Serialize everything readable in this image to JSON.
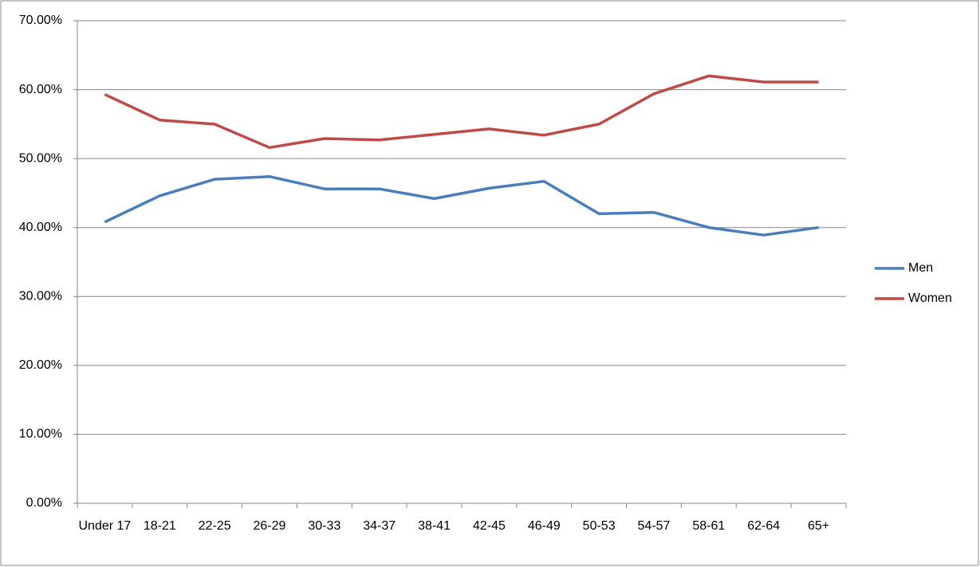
{
  "chart_data": {
    "type": "line",
    "categories": [
      "Under 17",
      "18-21",
      "22-25",
      "26-29",
      "30-33",
      "34-37",
      "38-41",
      "42-45",
      "46-49",
      "50-53",
      "54-57",
      "58-61",
      "62-64",
      "65+"
    ],
    "series": [
      {
        "name": "Men",
        "color": "#4a7ebb",
        "values": [
          40.8,
          44.6,
          47.0,
          47.4,
          45.6,
          45.6,
          44.2,
          45.7,
          46.7,
          42.0,
          42.2,
          40.0,
          38.9,
          40.0
        ]
      },
      {
        "name": "Women",
        "color": "#be4b48",
        "values": [
          59.3,
          55.6,
          55.0,
          51.6,
          52.9,
          52.7,
          53.5,
          54.3,
          53.4,
          55.0,
          59.4,
          62.0,
          61.1,
          61.1
        ]
      }
    ],
    "ylim": [
      0,
      70
    ],
    "yticks": [
      {
        "value": 0,
        "label": "0.00%"
      },
      {
        "value": 10,
        "label": "10.00%"
      },
      {
        "value": 20,
        "label": "20.00%"
      },
      {
        "value": 30,
        "label": "30.00%"
      },
      {
        "value": 40,
        "label": "40.00%"
      },
      {
        "value": 50,
        "label": "50.00%"
      },
      {
        "value": 60,
        "label": "60.00%"
      },
      {
        "value": 70,
        "label": "70.00%"
      }
    ],
    "grid": true,
    "legend": "right"
  }
}
